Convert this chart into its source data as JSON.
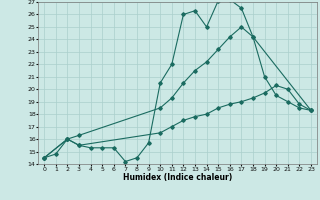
{
  "xlabel": "Humidex (Indice chaleur)",
  "xlim": [
    -0.5,
    23.5
  ],
  "ylim": [
    14,
    27
  ],
  "yticks": [
    14,
    15,
    16,
    17,
    18,
    19,
    20,
    21,
    22,
    23,
    24,
    25,
    26,
    27
  ],
  "xticks": [
    0,
    1,
    2,
    3,
    4,
    5,
    6,
    7,
    8,
    9,
    10,
    11,
    12,
    13,
    14,
    15,
    16,
    17,
    18,
    19,
    20,
    21,
    22,
    23
  ],
  "bg_color": "#cce8e5",
  "line_color": "#1a6b60",
  "grid_color": "#aacfcc",
  "line1_x": [
    0,
    1,
    2,
    3,
    4,
    5,
    6,
    7,
    8,
    9,
    10,
    11,
    12,
    13,
    14,
    15,
    16,
    17,
    18,
    23
  ],
  "line1_y": [
    14.5,
    14.8,
    16.0,
    15.5,
    15.3,
    15.3,
    15.3,
    14.2,
    14.5,
    15.7,
    20.5,
    22.0,
    26.0,
    26.3,
    25.0,
    27.1,
    27.2,
    26.5,
    24.2,
    18.3
  ],
  "line2_x": [
    0,
    2,
    3,
    10,
    11,
    12,
    13,
    14,
    15,
    16,
    17,
    18,
    19,
    20,
    21,
    22,
    23
  ],
  "line2_y": [
    14.5,
    16.0,
    16.3,
    18.5,
    19.3,
    20.5,
    21.5,
    22.2,
    23.2,
    24.2,
    25.0,
    24.2,
    21.0,
    19.5,
    19.0,
    18.5,
    18.3
  ],
  "line3_x": [
    0,
    2,
    3,
    10,
    11,
    12,
    13,
    14,
    15,
    16,
    17,
    18,
    19,
    20,
    21,
    22,
    23
  ],
  "line3_y": [
    14.5,
    16.0,
    15.5,
    16.5,
    17.0,
    17.5,
    17.8,
    18.0,
    18.5,
    18.8,
    19.0,
    19.3,
    19.7,
    20.3,
    20.0,
    18.8,
    18.3
  ]
}
